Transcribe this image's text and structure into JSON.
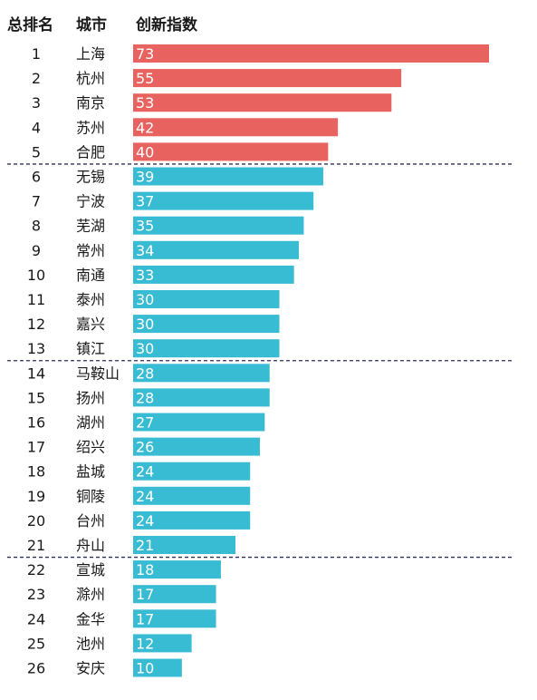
{
  "header": {
    "rank_label": "总排名",
    "city_label": "城市",
    "index_label": "创新指数"
  },
  "colors": {
    "top_group": "#e8635f",
    "other_groups": "#38bcd4",
    "separator": "#2a2f5a"
  },
  "chart_data": {
    "type": "bar",
    "orientation": "horizontal",
    "categories": [
      "上海",
      "杭州",
      "南京",
      "苏州",
      "合肥",
      "无锡",
      "宁波",
      "芜湖",
      "常州",
      "南通",
      "泰州",
      "嘉兴",
      "镇江",
      "马鞍山",
      "扬州",
      "湖州",
      "绍兴",
      "盐城",
      "铜陵",
      "台州",
      "舟山",
      "宣城",
      "滁州",
      "金华",
      "池州",
      "安庆"
    ],
    "ranks": [
      "1",
      "2",
      "3",
      "4",
      "5",
      "6",
      "7",
      "8",
      "9",
      "10",
      "11",
      "12",
      "13",
      "14",
      "15",
      "16",
      "17",
      "18",
      "19",
      "20",
      "21",
      "22",
      "23",
      "24",
      "25",
      "26"
    ],
    "values": [
      73,
      55,
      53,
      42,
      40,
      39,
      37,
      35,
      34,
      33,
      30,
      30,
      30,
      28,
      28,
      27,
      26,
      24,
      24,
      24,
      21,
      18,
      17,
      17,
      12,
      10
    ],
    "value_labels": [
      "73",
      "55",
      "53",
      "42",
      "40",
      "39",
      "37",
      "35",
      "34",
      "33",
      "30",
      "30",
      "30",
      "28",
      "28",
      "27",
      "26",
      "24",
      "24",
      "24",
      "21",
      "18",
      "17",
      "17",
      "12",
      "10"
    ],
    "groups_end_after_rank": [
      5,
      13,
      21
    ],
    "xlim": [
      0,
      73
    ],
    "grid": false,
    "legend": "none"
  }
}
